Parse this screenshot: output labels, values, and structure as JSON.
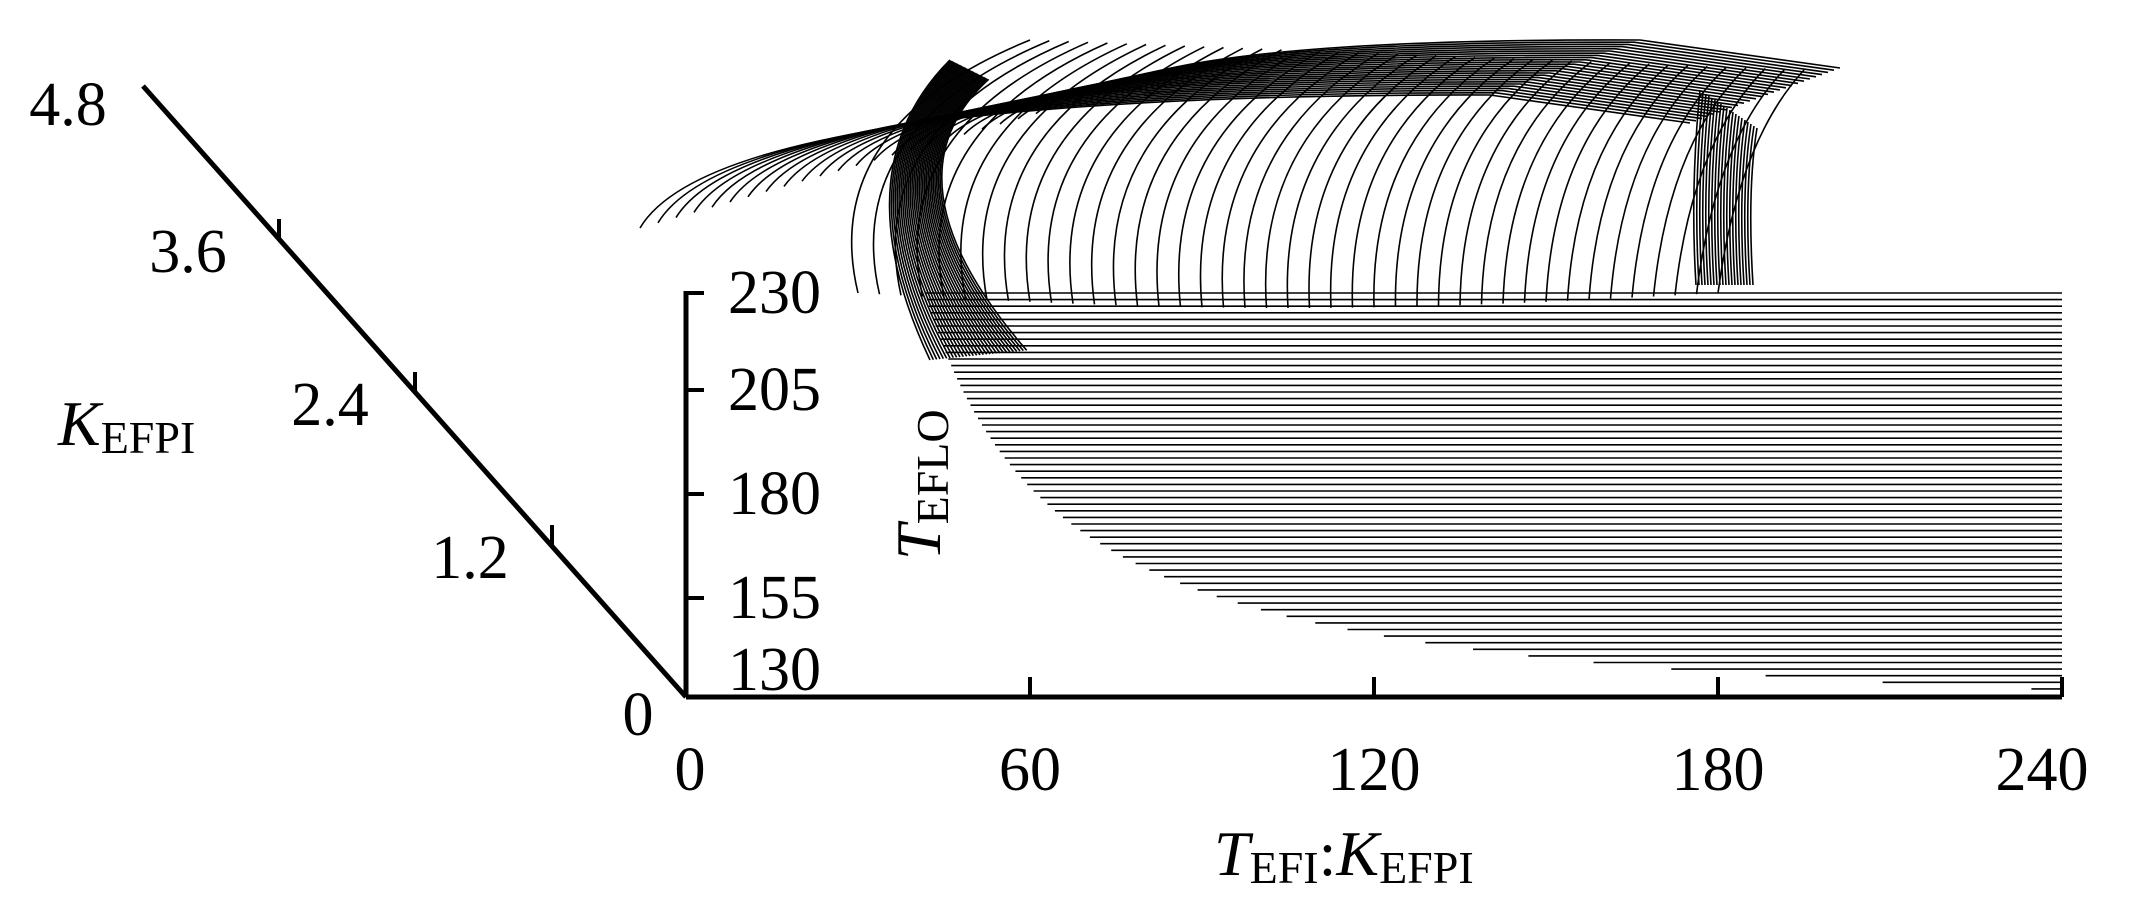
{
  "chart_data": {
    "type": "surface",
    "title": "",
    "x_axis": {
      "label_main": "T",
      "label_sub1": "EFI",
      "label_sep": ":",
      "label_main2": "K",
      "label_sub2": "EFPI",
      "ticks": [
        "0",
        "60",
        "120",
        "180",
        "240"
      ],
      "range": [
        0,
        240
      ]
    },
    "y_axis": {
      "label_main": "T",
      "label_sub": "EFLO",
      "ticks": [
        "130",
        "155",
        "180",
        "205",
        "230"
      ],
      "range": [
        130,
        230
      ]
    },
    "depth_axis": {
      "label_main": "K",
      "label_sub": "EFPI",
      "ticks": [
        "0",
        "1.2",
        "2.4",
        "3.6",
        "4.8"
      ],
      "range": [
        0,
        4.8
      ]
    },
    "surface": {
      "description_of_shape": "mesh of horizontal lines; front edge curve x = k/(T-130)",
      "front_edge": [
        {
          "x": 30,
          "T": 230
        },
        {
          "x": 50,
          "T": 205
        },
        {
          "x": 80,
          "T": 180
        },
        {
          "x": 140,
          "T": 155
        },
        {
          "x": 240,
          "T": 130
        }
      ],
      "depth_levels": 40,
      "height_levels": 60
    }
  }
}
